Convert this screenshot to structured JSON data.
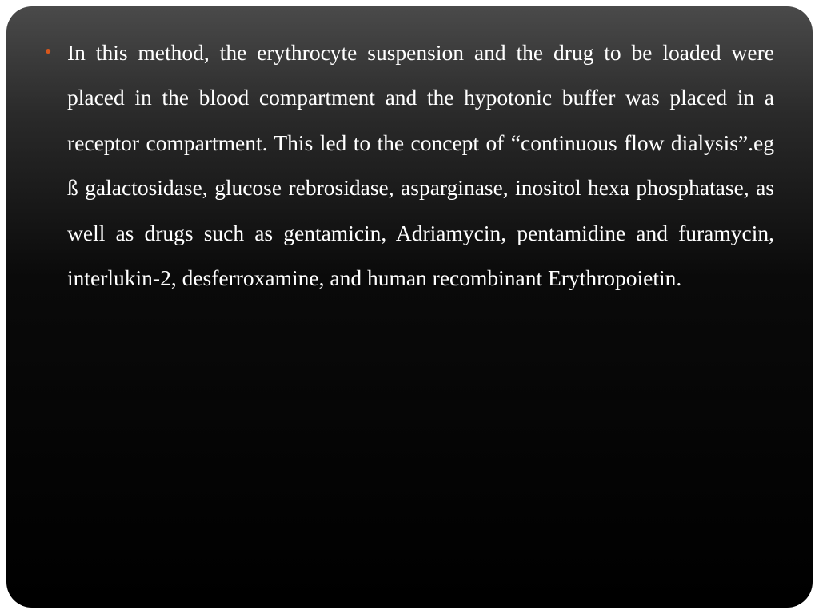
{
  "slide": {
    "background_gradient_top": "#4a4a4a",
    "background_gradient_bottom": "#000000",
    "border_radius": 32,
    "text_color": "#ffffff",
    "bullet_color": "#d8571c",
    "font_family": "Georgia, Times New Roman, serif",
    "font_size": 27.5,
    "line_height": 2.05,
    "text_align": "justify",
    "bullets": [
      "In this method, the erythrocyte suspension and the drug to be loaded were placed in the blood compartment and the hypotonic buffer was placed in a receptor compartment. This led to the concept of “continuous flow dialysis”.eg ß galactosidase, glucose rebrosidase, asparginase, inositol hexa phosphatase, as well as drugs such as gentamicin, Adriamycin, pentamidine and furamycin, interlukin-2, desferroxamine, and human recombinant Erythropoietin."
    ]
  }
}
